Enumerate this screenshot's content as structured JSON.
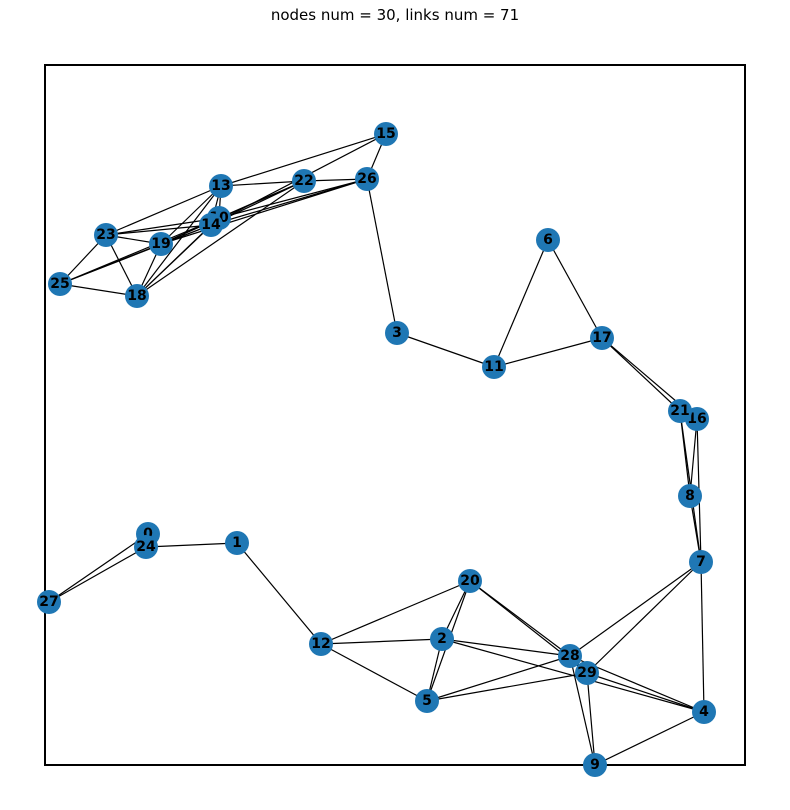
{
  "title": "nodes num = 30, links num = 71",
  "colors": {
    "node": "#1f77b4",
    "edge": "#000000",
    "frame": "#000000"
  },
  "graph": {
    "nodes": [
      {
        "id": "0"
      },
      {
        "id": "1"
      },
      {
        "id": "2"
      },
      {
        "id": "3"
      },
      {
        "id": "4"
      },
      {
        "id": "5"
      },
      {
        "id": "6"
      },
      {
        "id": "7"
      },
      {
        "id": "8"
      },
      {
        "id": "9"
      },
      {
        "id": "10"
      },
      {
        "id": "11"
      },
      {
        "id": "12"
      },
      {
        "id": "13"
      },
      {
        "id": "14"
      },
      {
        "id": "15"
      },
      {
        "id": "16"
      },
      {
        "id": "17"
      },
      {
        "id": "18"
      },
      {
        "id": "19"
      },
      {
        "id": "20"
      },
      {
        "id": "21"
      },
      {
        "id": "22"
      },
      {
        "id": "23"
      },
      {
        "id": "24"
      },
      {
        "id": "25"
      },
      {
        "id": "26"
      },
      {
        "id": "27"
      },
      {
        "id": "28"
      },
      {
        "id": "29"
      }
    ],
    "edges": [
      [
        "0",
        "24"
      ],
      [
        "0",
        "27"
      ],
      [
        "24",
        "27"
      ],
      [
        "24",
        "1"
      ],
      [
        "1",
        "12"
      ],
      [
        "12",
        "20"
      ],
      [
        "12",
        "2"
      ],
      [
        "12",
        "5"
      ],
      [
        "20",
        "2"
      ],
      [
        "20",
        "5"
      ],
      [
        "20",
        "28"
      ],
      [
        "20",
        "29"
      ],
      [
        "2",
        "5"
      ],
      [
        "2",
        "28"
      ],
      [
        "2",
        "4"
      ],
      [
        "5",
        "28"
      ],
      [
        "5",
        "29"
      ],
      [
        "28",
        "29"
      ],
      [
        "28",
        "9"
      ],
      [
        "28",
        "7"
      ],
      [
        "28",
        "4"
      ],
      [
        "29",
        "9"
      ],
      [
        "29",
        "7"
      ],
      [
        "29",
        "4"
      ],
      [
        "9",
        "4"
      ],
      [
        "4",
        "7"
      ],
      [
        "7",
        "8"
      ],
      [
        "7",
        "16"
      ],
      [
        "7",
        "21"
      ],
      [
        "8",
        "16"
      ],
      [
        "8",
        "21"
      ],
      [
        "16",
        "21"
      ],
      [
        "17",
        "21"
      ],
      [
        "17",
        "16"
      ],
      [
        "17",
        "6"
      ],
      [
        "17",
        "11"
      ],
      [
        "6",
        "11"
      ],
      [
        "11",
        "3"
      ],
      [
        "3",
        "26"
      ],
      [
        "26",
        "15"
      ],
      [
        "26",
        "22"
      ],
      [
        "26",
        "10"
      ],
      [
        "26",
        "14"
      ],
      [
        "26",
        "19"
      ],
      [
        "15",
        "13"
      ],
      [
        "15",
        "14"
      ],
      [
        "22",
        "13"
      ],
      [
        "22",
        "10"
      ],
      [
        "22",
        "14"
      ],
      [
        "22",
        "19"
      ],
      [
        "13",
        "10"
      ],
      [
        "13",
        "14"
      ],
      [
        "13",
        "19"
      ],
      [
        "13",
        "23"
      ],
      [
        "13",
        "18"
      ],
      [
        "10",
        "14"
      ],
      [
        "10",
        "19"
      ],
      [
        "10",
        "23"
      ],
      [
        "10",
        "18"
      ],
      [
        "10",
        "25"
      ],
      [
        "14",
        "19"
      ],
      [
        "14",
        "23"
      ],
      [
        "14",
        "18"
      ],
      [
        "14",
        "25"
      ],
      [
        "19",
        "23"
      ],
      [
        "19",
        "18"
      ],
      [
        "19",
        "25"
      ],
      [
        "23",
        "25"
      ],
      [
        "23",
        "18"
      ],
      [
        "25",
        "18"
      ],
      [
        "22",
        "18"
      ]
    ]
  }
}
